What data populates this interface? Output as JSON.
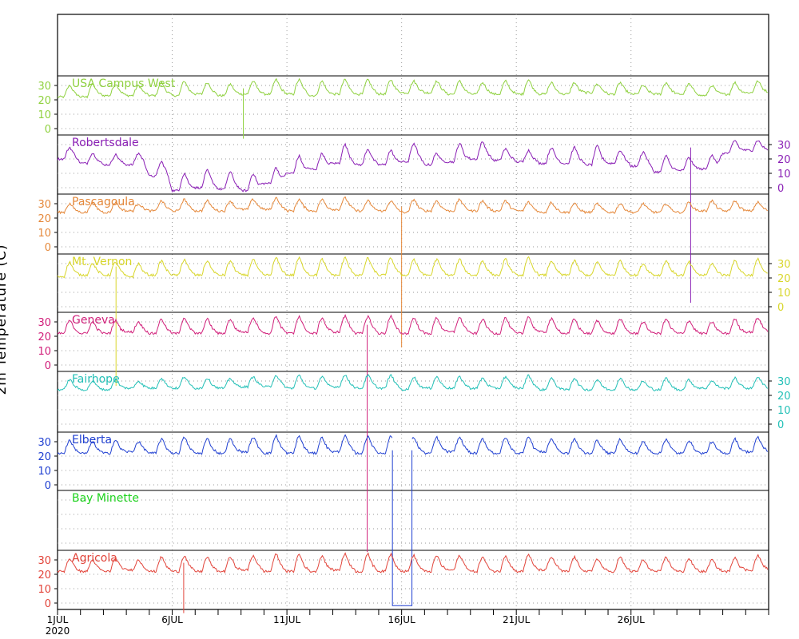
{
  "chart_data": {
    "type": "line",
    "ylabel": "2m Temperature (C)",
    "x_start_date": "2020-07-01",
    "x_days": 31,
    "x_ticks": [
      {
        "day": 0,
        "label": "1JUL"
      },
      {
        "day": 5,
        "label": "6JUL"
      },
      {
        "day": 10,
        "label": "11JUL"
      },
      {
        "day": 15,
        "label": "16JUL"
      },
      {
        "day": 20,
        "label": "21JUL"
      },
      {
        "day": 25,
        "label": "26JUL"
      }
    ],
    "x_year_label": "2020",
    "grid": true,
    "ylim": [
      -5,
      35
    ],
    "yticks": [
      0,
      10,
      20,
      30
    ],
    "series": [
      {
        "name": "USA Campus West",
        "color": "#8fd13f",
        "axis": "left",
        "daily_max": [
          30,
          31,
          31,
          30,
          32,
          33,
          32,
          31,
          33,
          34,
          34,
          33,
          34,
          34,
          34,
          33,
          33,
          33,
          32,
          33,
          34,
          32,
          32,
          31,
          32,
          30,
          32,
          31,
          30,
          32,
          33
        ],
        "daily_min": [
          22,
          22,
          23,
          23,
          23,
          23,
          24,
          23,
          24,
          24,
          24,
          23,
          24,
          24,
          24,
          25,
          25,
          24,
          24,
          24,
          24,
          24,
          24,
          25,
          24,
          24,
          24,
          24,
          23,
          24,
          25
        ],
        "spikes": [
          {
            "day": 8.1,
            "value": -7
          }
        ]
      },
      {
        "name": "Robertsdale",
        "color": "#8a1fb5",
        "axis": "right",
        "daily_max": [
          28,
          24,
          23,
          24,
          18,
          10,
          12,
          11,
          10,
          14,
          22,
          24,
          30,
          27,
          26,
          31,
          24,
          31,
          32,
          27,
          26,
          28,
          28,
          29,
          26,
          25,
          22,
          21,
          23,
          33,
          33
        ],
        "daily_min": [
          20,
          17,
          16,
          16,
          8,
          -2,
          0,
          -1,
          -2,
          3,
          10,
          13,
          17,
          16,
          16,
          18,
          16,
          18,
          20,
          19,
          18,
          17,
          17,
          16,
          17,
          15,
          11,
          12,
          13,
          24,
          26
        ],
        "spikes": [
          {
            "day": 27.6,
            "value": -80
          }
        ]
      },
      {
        "name": "Pascagoula",
        "color": "#e5883a",
        "axis": "left",
        "daily_max": [
          30,
          31,
          31,
          30,
          32,
          33,
          32,
          32,
          33,
          34,
          33,
          33,
          34,
          32,
          32,
          33,
          32,
          33,
          32,
          32,
          31,
          31,
          30,
          30,
          30,
          30,
          30,
          31,
          32,
          32,
          31
        ],
        "daily_min": [
          24,
          24,
          24,
          25,
          25,
          25,
          25,
          25,
          26,
          26,
          25,
          25,
          26,
          25,
          25,
          24,
          25,
          25,
          25,
          25,
          25,
          24,
          24,
          24,
          24,
          24,
          24,
          24,
          25,
          25,
          25
        ],
        "spikes": [
          {
            "day": 15.0,
            "value": -70
          }
        ]
      },
      {
        "name": "Mt. Vernon",
        "color": "#d8d62a",
        "axis": "right",
        "daily_max": [
          31,
          30,
          31,
          30,
          32,
          33,
          32,
          32,
          33,
          34,
          34,
          33,
          34,
          34,
          34,
          33,
          33,
          33,
          32,
          33,
          34,
          32,
          32,
          31,
          32,
          30,
          32,
          31,
          30,
          32,
          33
        ],
        "daily_min": [
          21,
          22,
          22,
          21,
          22,
          22,
          22,
          22,
          22,
          22,
          22,
          22,
          22,
          22,
          22,
          22,
          22,
          22,
          22,
          22,
          22,
          22,
          22,
          22,
          22,
          22,
          22,
          22,
          22,
          22,
          22
        ],
        "spikes": [
          {
            "day": 2.55,
            "value": -55
          }
        ]
      },
      {
        "name": "Geneva",
        "color": "#d11f7a",
        "axis": "left",
        "daily_max": [
          31,
          30,
          31,
          30,
          32,
          33,
          32,
          32,
          33,
          34,
          34,
          33,
          34,
          34,
          34,
          33,
          33,
          33,
          32,
          33,
          34,
          32,
          32,
          31,
          32,
          30,
          32,
          31,
          30,
          32,
          33
        ],
        "daily_min": [
          22,
          22,
          22,
          23,
          22,
          22,
          22,
          22,
          23,
          22,
          22,
          22,
          23,
          22,
          22,
          22,
          22,
          23,
          22,
          22,
          22,
          23,
          22,
          22,
          22,
          22,
          22,
          22,
          22,
          22,
          23
        ],
        "spikes": [
          {
            "day": 13.5,
            "value": -130
          }
        ]
      },
      {
        "name": "Fairhope",
        "color": "#22c0b7",
        "axis": "right",
        "daily_max": [
          31,
          30,
          31,
          30,
          32,
          33,
          32,
          32,
          33,
          34,
          34,
          33,
          34,
          34,
          34,
          33,
          33,
          33,
          32,
          33,
          34,
          32,
          32,
          31,
          32,
          30,
          32,
          31,
          30,
          32,
          33
        ],
        "daily_min": [
          24,
          24,
          24,
          25,
          25,
          25,
          25,
          25,
          26,
          26,
          25,
          25,
          26,
          25,
          25,
          24,
          25,
          25,
          25,
          25,
          25,
          24,
          24,
          24,
          24,
          24,
          24,
          24,
          25,
          25,
          25
        ],
        "spikes": []
      },
      {
        "name": "Elberta",
        "color": "#1f3fd1",
        "axis": "left",
        "daily_max": [
          31,
          30,
          31,
          30,
          32,
          33,
          32,
          32,
          33,
          34,
          34,
          33,
          34,
          34,
          34,
          33,
          33,
          33,
          32,
          33,
          34,
          32,
          32,
          31,
          32,
          30,
          32,
          31,
          30,
          32,
          33
        ],
        "daily_min": [
          22,
          22,
          22,
          23,
          22,
          22,
          22,
          22,
          23,
          22,
          22,
          22,
          23,
          22,
          22,
          22,
          22,
          23,
          22,
          22,
          22,
          23,
          22,
          22,
          22,
          22,
          22,
          22,
          22,
          22,
          23
        ],
        "gap": {
          "start_day": 14.6,
          "end_day": 15.45,
          "value": -84
        }
      },
      {
        "name": "Bay Minette",
        "color": "#1ed31e",
        "axis": "none",
        "daily_max": [],
        "daily_min": []
      },
      {
        "name": "Agricola",
        "color": "#e2443a",
        "axis": "left",
        "daily_max": [
          31,
          30,
          31,
          30,
          32,
          33,
          32,
          32,
          33,
          34,
          34,
          33,
          34,
          34,
          34,
          33,
          33,
          33,
          32,
          33,
          34,
          32,
          32,
          31,
          32,
          30,
          32,
          31,
          30,
          32,
          33
        ],
        "daily_min": [
          22,
          22,
          22,
          23,
          22,
          22,
          22,
          22,
          23,
          22,
          22,
          22,
          23,
          22,
          22,
          22,
          22,
          23,
          22,
          22,
          22,
          23,
          22,
          22,
          22,
          22,
          22,
          22,
          22,
          22,
          23
        ],
        "spikes": [
          {
            "day": 5.5,
            "value": -7
          }
        ]
      }
    ]
  }
}
